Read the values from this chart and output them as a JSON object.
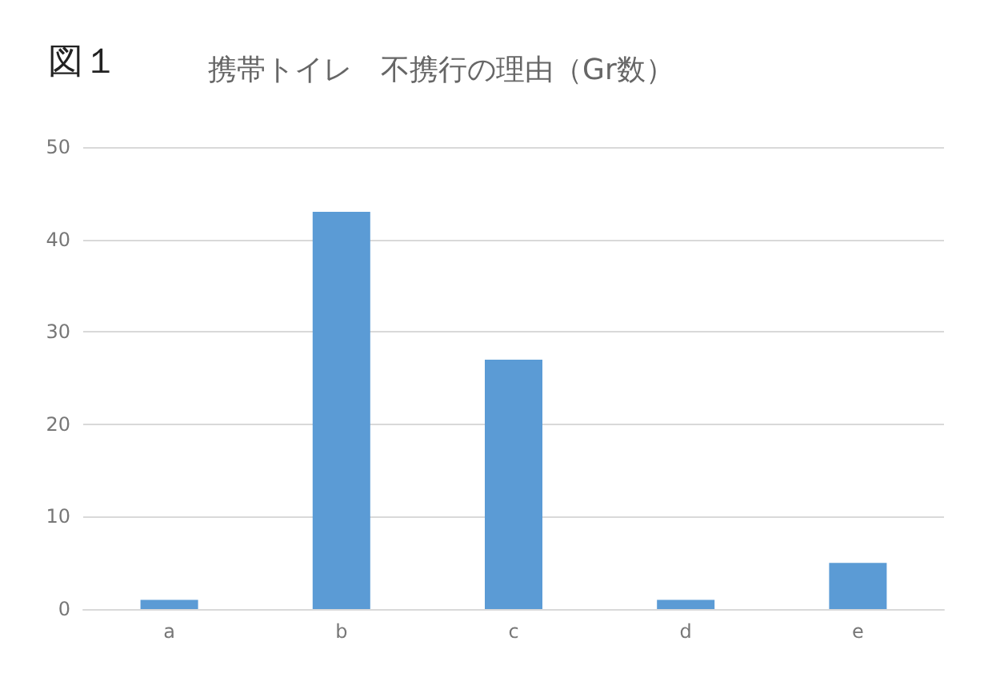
{
  "chart_data": {
    "type": "bar",
    "title": "携帯トイレ　不携行の理由（Gr数）",
    "annotations": [
      "図１"
    ],
    "categories": [
      "a",
      "b",
      "c",
      "d",
      "e"
    ],
    "values": [
      1,
      43,
      27,
      1,
      5
    ],
    "color": "#5b9bd5",
    "ylim": [
      0,
      50
    ],
    "yticks": [
      0,
      10,
      20,
      30,
      40,
      50
    ],
    "grid": "y"
  }
}
